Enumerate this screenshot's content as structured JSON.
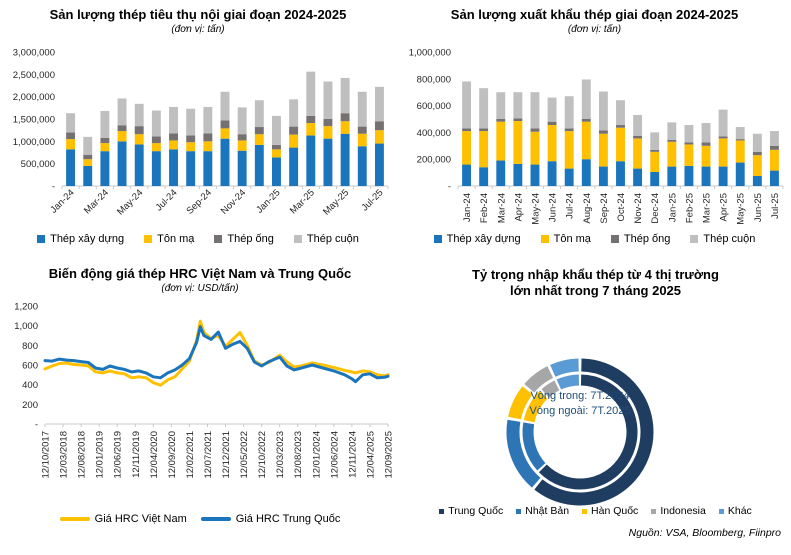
{
  "page": {
    "background": "#ffffff",
    "source_note": "Nguồn: VSA, Bloomberg, Fiinpro"
  },
  "colors": {
    "bar_blue": "#1b75bc",
    "bar_yellow": "#ffc000",
    "bar_darkgray": "#767171",
    "bar_lightgray": "#bfbfbf",
    "axis_line": "#c9c9c9",
    "axis_text": "#262626",
    "donut_navy": "#1f3c61",
    "donut_blue": "#2e75b6",
    "donut_yellow": "#ffc000",
    "donut_gray": "#a6a6a6",
    "donut_lightblue": "#5b9bd5",
    "donut_center_text": "#1f4e79"
  },
  "chart_data": [
    {
      "id": "domestic-consumption",
      "type": "bar",
      "stacked": true,
      "title": "Sản lượng thép tiêu thụ nội giai đoạn 2024-2025",
      "subtitle": "(đơn vị: tấn)",
      "categories": [
        "Jan-24",
        "Feb-24",
        "Mar-24",
        "Apr-24",
        "May-24",
        "Jun-24",
        "Jul-24",
        "Aug-24",
        "Sep-24",
        "Oct-24",
        "Nov-24",
        "Dec-24",
        "Jan-25",
        "Feb-25",
        "Mar-25",
        "Apr-25",
        "May-25",
        "Jun-25",
        "Jul-25"
      ],
      "series": [
        {
          "name": "Thép xây dựng",
          "color": "#1b75bc",
          "values": [
            820000,
            450000,
            780000,
            1000000,
            930000,
            780000,
            820000,
            780000,
            780000,
            1060000,
            790000,
            920000,
            640000,
            860000,
            1130000,
            1060000,
            1170000,
            890000,
            950000
          ]
        },
        {
          "name": "Tôn mạ",
          "color": "#ffc000",
          "values": [
            230000,
            150000,
            180000,
            230000,
            230000,
            180000,
            200000,
            200000,
            220000,
            230000,
            230000,
            240000,
            180000,
            290000,
            280000,
            280000,
            280000,
            280000,
            300000
          ]
        },
        {
          "name": "Thép ống",
          "color": "#767171",
          "values": [
            150000,
            100000,
            120000,
            130000,
            180000,
            150000,
            160000,
            150000,
            180000,
            180000,
            140000,
            160000,
            100000,
            180000,
            160000,
            160000,
            180000,
            160000,
            200000
          ]
        },
        {
          "name": "Thép cuộn",
          "color": "#bfbfbf",
          "values": [
            430000,
            400000,
            600000,
            600000,
            500000,
            580000,
            590000,
            600000,
            590000,
            640000,
            600000,
            600000,
            650000,
            610000,
            990000,
            840000,
            790000,
            780000,
            770000
          ]
        }
      ],
      "ylim": [
        0,
        3000000
      ],
      "ytick_step": 500000,
      "ytick_labels": [
        "-",
        "500,000",
        "1,000,000",
        "1,500,000",
        "2,000,000",
        "2,500,000",
        "3,000,000"
      ],
      "xtick_every": 2,
      "xtick_rotation": -45,
      "legend_position": "bottom"
    },
    {
      "id": "export-production",
      "type": "bar",
      "stacked": true,
      "title": "Sản lượng xuất khẩu thép giai đoạn 2024-2025",
      "subtitle": "(đơn vị: tấn)",
      "categories": [
        "Jan-24",
        "Feb-24",
        "Mar-24",
        "Apr-24",
        "May-24",
        "Jun-24",
        "Jul-24",
        "Aug-24",
        "Sep-24",
        "Oct-24",
        "Nov-24",
        "Dec-24",
        "Jan-25",
        "Feb-25",
        "Mar-25",
        "Apr-25",
        "May-25",
        "Jun-25",
        "Jul-25"
      ],
      "series": [
        {
          "name": "Thép xây dựng",
          "color": "#1b75bc",
          "values": [
            160000,
            140000,
            190000,
            165000,
            160000,
            185000,
            130000,
            200000,
            145000,
            185000,
            130000,
            105000,
            145000,
            150000,
            145000,
            145000,
            175000,
            75000,
            115000
          ]
        },
        {
          "name": "Tôn mạ",
          "color": "#ffc000",
          "values": [
            250000,
            270000,
            290000,
            320000,
            245000,
            270000,
            280000,
            280000,
            245000,
            250000,
            225000,
            150000,
            185000,
            160000,
            155000,
            210000,
            165000,
            155000,
            155000
          ]
        },
        {
          "name": "Thép ống",
          "color": "#767171",
          "values": [
            20000,
            20000,
            20000,
            20000,
            25000,
            25000,
            20000,
            20000,
            25000,
            20000,
            20000,
            15000,
            15000,
            15000,
            25000,
            15000,
            10000,
            25000,
            30000
          ]
        },
        {
          "name": "Thép cuộn",
          "color": "#bfbfbf",
          "values": [
            350000,
            300000,
            200000,
            195000,
            270000,
            180000,
            240000,
            295000,
            290000,
            185000,
            155000,
            130000,
            130000,
            130000,
            145000,
            200000,
            90000,
            135000,
            110000
          ]
        }
      ],
      "ylim": [
        0,
        1000000
      ],
      "ytick_step": 200000,
      "ytick_labels": [
        "-",
        "200,000",
        "400,000",
        "600,000",
        "800,000",
        "1,000,000"
      ],
      "xtick_every": 1,
      "xtick_rotation": -90,
      "legend_position": "bottom"
    },
    {
      "id": "hrc-price",
      "type": "line",
      "title": "Biến động giá thép HRC Việt Nam và Trung Quốc",
      "subtitle": "(đơn vị: USD/tấn)",
      "series_meta": [
        {
          "key": "vn",
          "name": "Giá HRC Việt Nam",
          "color": "#ffc000"
        },
        {
          "key": "cn",
          "name": "Giá HRC Trung Quốc",
          "color": "#1b75bc"
        }
      ],
      "ylim": [
        0,
        1200
      ],
      "ytick_step": 200,
      "ytick_labels": [
        "-",
        "200",
        "400",
        "600",
        "800",
        "1,000",
        "1,200"
      ],
      "x_span_months": 95,
      "xticks": [
        {
          "label": "12/10/2017",
          "m": 0
        },
        {
          "label": "12/03/2018",
          "m": 5
        },
        {
          "label": "12/08/2018",
          "m": 10
        },
        {
          "label": "12/01/2019",
          "m": 15
        },
        {
          "label": "12/06/2019",
          "m": 20
        },
        {
          "label": "12/11/2019",
          "m": 25
        },
        {
          "label": "12/04/2020",
          "m": 30
        },
        {
          "label": "12/09/2020",
          "m": 35
        },
        {
          "label": "12/02/2021",
          "m": 40
        },
        {
          "label": "12/07/2021",
          "m": 45
        },
        {
          "label": "12/12/2021",
          "m": 50
        },
        {
          "label": "12/05/2022",
          "m": 55
        },
        {
          "label": "12/10/2022",
          "m": 60
        },
        {
          "label": "12/03/2023",
          "m": 65
        },
        {
          "label": "12/08/2023",
          "m": 70
        },
        {
          "label": "12/01/2024",
          "m": 75
        },
        {
          "label": "12/06/2024",
          "m": 80
        },
        {
          "label": "12/11/2024",
          "m": 85
        },
        {
          "label": "12/04/2025",
          "m": 90
        },
        {
          "label": "12/09/2025",
          "m": 95
        }
      ],
      "points": [
        {
          "d": "2017-10",
          "vn": 560,
          "cn": 645
        },
        {
          "d": "2017-12",
          "vn": 590,
          "cn": 640
        },
        {
          "d": "2018-02",
          "vn": 615,
          "cn": 660
        },
        {
          "d": "2018-04",
          "vn": 620,
          "cn": 650
        },
        {
          "d": "2018-06",
          "vn": 605,
          "cn": 645
        },
        {
          "d": "2018-08",
          "vn": 600,
          "cn": 635
        },
        {
          "d": "2018-10",
          "vn": 590,
          "cn": 625
        },
        {
          "d": "2018-12",
          "vn": 530,
          "cn": 570
        },
        {
          "d": "2019-02",
          "vn": 520,
          "cn": 555
        },
        {
          "d": "2019-04",
          "vn": 540,
          "cn": 590
        },
        {
          "d": "2019-06",
          "vn": 520,
          "cn": 570
        },
        {
          "d": "2019-08",
          "vn": 510,
          "cn": 555
        },
        {
          "d": "2019-10",
          "vn": 470,
          "cn": 530
        },
        {
          "d": "2019-12",
          "vn": 480,
          "cn": 540
        },
        {
          "d": "2020-02",
          "vn": 470,
          "cn": 520
        },
        {
          "d": "2020-04",
          "vn": 420,
          "cn": 480
        },
        {
          "d": "2020-06",
          "vn": 395,
          "cn": 470
        },
        {
          "d": "2020-08",
          "vn": 450,
          "cn": 520
        },
        {
          "d": "2020-10",
          "vn": 480,
          "cn": 550
        },
        {
          "d": "2020-12",
          "vn": 560,
          "cn": 600
        },
        {
          "d": "2021-02",
          "vn": 640,
          "cn": 665
        },
        {
          "d": "2021-04",
          "vn": 850,
          "cn": 830
        },
        {
          "d": "2021-05",
          "vn": 1045,
          "cn": 990
        },
        {
          "d": "2021-06",
          "vn": 930,
          "cn": 900
        },
        {
          "d": "2021-08",
          "vn": 870,
          "cn": 860
        },
        {
          "d": "2021-10",
          "vn": 900,
          "cn": 935
        },
        {
          "d": "2021-12",
          "vn": 790,
          "cn": 770
        },
        {
          "d": "2022-02",
          "vn": 860,
          "cn": 810
        },
        {
          "d": "2022-04",
          "vn": 930,
          "cn": 840
        },
        {
          "d": "2022-06",
          "vn": 800,
          "cn": 770
        },
        {
          "d": "2022-08",
          "vn": 640,
          "cn": 630
        },
        {
          "d": "2022-10",
          "vn": 600,
          "cn": 590
        },
        {
          "d": "2022-12",
          "vn": 625,
          "cn": 635
        },
        {
          "d": "2023-03",
          "vn": 700,
          "cn": 680
        },
        {
          "d": "2023-05",
          "vn": 630,
          "cn": 590
        },
        {
          "d": "2023-07",
          "vn": 580,
          "cn": 550
        },
        {
          "d": "2023-09",
          "vn": 590,
          "cn": 570
        },
        {
          "d": "2023-12",
          "vn": 620,
          "cn": 600
        },
        {
          "d": "2024-03",
          "vn": 600,
          "cn": 570
        },
        {
          "d": "2024-06",
          "vn": 575,
          "cn": 540
        },
        {
          "d": "2024-09",
          "vn": 545,
          "cn": 500
        },
        {
          "d": "2024-11",
          "vn": 530,
          "cn": 460
        },
        {
          "d": "2024-12",
          "vn": 520,
          "cn": 430
        },
        {
          "d": "2025-02",
          "vn": 540,
          "cn": 500
        },
        {
          "d": "2025-04",
          "vn": 530,
          "cn": 510
        },
        {
          "d": "2025-06",
          "vn": 500,
          "cn": 470
        },
        {
          "d": "2025-08",
          "vn": 490,
          "cn": 475
        },
        {
          "d": "2025-09",
          "vn": 500,
          "cn": 485
        }
      ],
      "legend_position": "bottom"
    },
    {
      "id": "import-share",
      "type": "pie",
      "title_lines": [
        "Tỷ trọng nhập khẩu thép từ 4 thị trường",
        "lớn nhất trong 7 tháng 2025"
      ],
      "center_lines": [
        "Vòng trong: 7T.2024",
        "Vòng ngoài: 7T.2025"
      ],
      "categories": [
        "Trung Quốc",
        "Nhật Bản",
        "Hàn Quốc",
        "Indonesia",
        "Khác"
      ],
      "colors": [
        "#1f3c61",
        "#2e75b6",
        "#ffc000",
        "#a6a6a6",
        "#5b9bd5"
      ],
      "rings": [
        {
          "name": "Vòng trong: 7T.2024",
          "values_pct": [
            63,
            15,
            10,
            5,
            7
          ]
        },
        {
          "name": "Vòng ngoài: 7T.2025",
          "values_pct": [
            61,
            17,
            8,
            7,
            7
          ]
        }
      ],
      "legend_position": "bottom"
    }
  ]
}
